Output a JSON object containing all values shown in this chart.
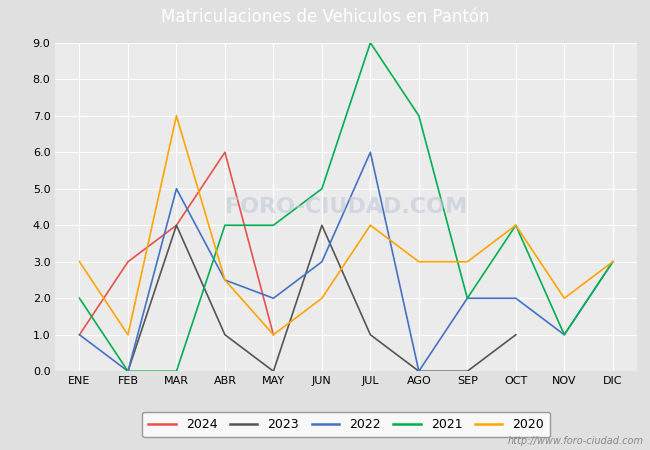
{
  "title": "Matriculaciones de Vehiculos en Pantón",
  "title_bg_color": "#4A90D9",
  "title_text_color": "#FFFFFF",
  "months": [
    "ENE",
    "FEB",
    "MAR",
    "ABR",
    "MAY",
    "JUN",
    "JUL",
    "AGO",
    "SEP",
    "OCT",
    "NOV",
    "DIC"
  ],
  "ylim": [
    0.0,
    9.0
  ],
  "yticks": [
    0.0,
    1.0,
    2.0,
    3.0,
    4.0,
    5.0,
    6.0,
    7.0,
    8.0,
    9.0
  ],
  "series": {
    "2024": {
      "color": "#E8514A",
      "data": [
        1.0,
        3.0,
        4.0,
        6.0,
        1.0,
        null,
        null,
        null,
        null,
        null,
        null,
        null
      ]
    },
    "2023": {
      "color": "#555555",
      "data": [
        null,
        0.0,
        4.0,
        1.0,
        0.0,
        4.0,
        1.0,
        0.0,
        0.0,
        1.0,
        null,
        null
      ]
    },
    "2022": {
      "color": "#4472C4",
      "data": [
        1.0,
        0.0,
        5.0,
        2.5,
        2.0,
        3.0,
        6.0,
        0.0,
        2.0,
        2.0,
        1.0,
        3.0
      ]
    },
    "2021": {
      "color": "#00B050",
      "data": [
        2.0,
        0.0,
        0.0,
        4.0,
        4.0,
        5.0,
        9.0,
        7.0,
        2.0,
        4.0,
        1.0,
        3.0
      ]
    },
    "2020": {
      "color": "#FFA500",
      "data": [
        3.0,
        1.0,
        7.0,
        2.5,
        1.0,
        2.0,
        4.0,
        3.0,
        3.0,
        4.0,
        2.0,
        3.0
      ]
    }
  },
  "legend_order": [
    "2024",
    "2023",
    "2022",
    "2021",
    "2020"
  ],
  "watermark_text": "http://www.foro-ciudad.com",
  "bg_color": "#E0E0E0",
  "plot_bg_color": "#EBEBEB",
  "grid_color": "#FFFFFF",
  "font_size_title": 12,
  "font_size_ticks": 8,
  "font_size_legend": 9,
  "font_size_watermark": 7,
  "foro_watermark": "FORO-CIUDAD.COM"
}
